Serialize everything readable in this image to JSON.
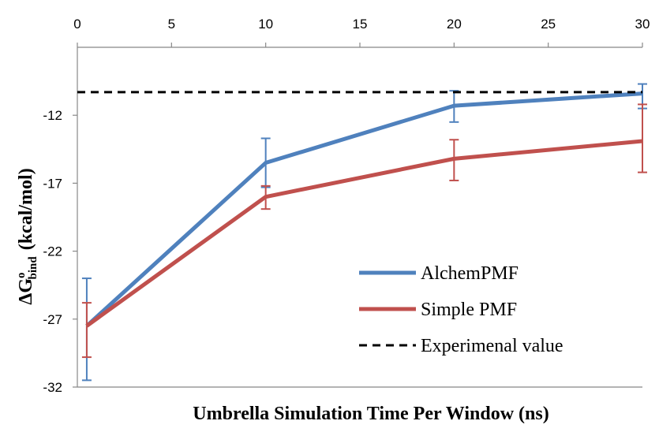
{
  "chart_data": {
    "type": "line",
    "xlabel": "Umbrella Simulation Time Per Window (ns)",
    "ylabel": {
      "prefix": "ΔG",
      "superscript": "o",
      "subscript": "bind",
      "suffix": "(kcal/mol)"
    },
    "xlim": [
      0,
      30
    ],
    "ylim": [
      -32,
      -7
    ],
    "x_ticks": [
      "0",
      "5",
      "10",
      "15",
      "20",
      "25",
      "30"
    ],
    "y_ticks": [
      "-12",
      "-17",
      "-22",
      "-27",
      "-32"
    ],
    "x_tick_values": [
      0,
      5,
      10,
      15,
      20,
      25,
      30
    ],
    "y_tick_values": [
      -12,
      -17,
      -22,
      -27,
      -32
    ],
    "x_axis_position": "top",
    "grid": false,
    "legend_position": "bottom-right",
    "series": [
      {
        "name": "AlchemPMF",
        "color": "#4F81BD",
        "x": [
          0.5,
          10,
          20,
          30
        ],
        "y": [
          -27.5,
          -15.5,
          -11.3,
          -10.4
        ],
        "err_low": [
          -31.5,
          -17.3,
          -12.5,
          -11.5
        ],
        "err_high": [
          -24.0,
          -13.7,
          -10.2,
          -9.7
        ]
      },
      {
        "name": "Simple PMF",
        "color": "#C0504D",
        "x": [
          0.5,
          10,
          20,
          30
        ],
        "y": [
          -27.5,
          -18.0,
          -15.2,
          -13.9
        ],
        "err_low": [
          -29.8,
          -18.9,
          -16.8,
          -16.2
        ],
        "err_high": [
          -25.8,
          -17.2,
          -13.8,
          -11.2
        ]
      },
      {
        "name": "Experimenal value",
        "color": "#000000",
        "dashed": true,
        "x": [
          0,
          30
        ],
        "y": [
          -10.3,
          -10.3
        ]
      }
    ]
  }
}
